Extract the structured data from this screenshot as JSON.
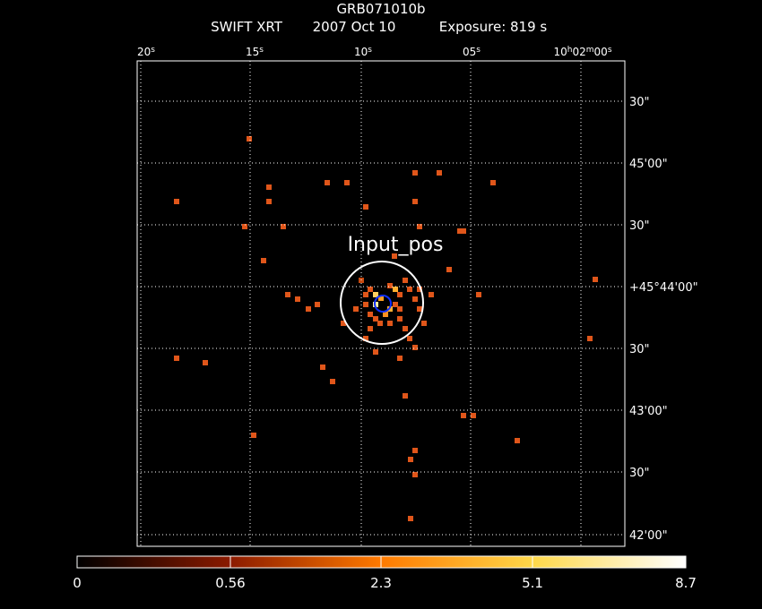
{
  "header": {
    "title": "GRB071010b",
    "subtitle": [
      "SWIFT XRT",
      "2007 Oct 10",
      "Exposure: 819 s"
    ]
  },
  "ra_labels": [
    [
      {
        "t": "20"
      },
      {
        "t": "s",
        "sup": true
      }
    ],
    [
      {
        "t": "15"
      },
      {
        "t": "s",
        "sup": true
      }
    ],
    [
      {
        "t": "10"
      },
      {
        "t": "s",
        "sup": true
      }
    ],
    [
      {
        "t": "05"
      },
      {
        "t": "s",
        "sup": true
      }
    ],
    [
      {
        "t": "10"
      },
      {
        "t": "h",
        "sup": true
      },
      {
        "t": "02"
      },
      {
        "t": "m",
        "sup": true
      },
      {
        "t": "00"
      },
      {
        "t": "s",
        "sup": true
      }
    ]
  ],
  "dec_labels": [
    "30\"",
    "45'00\"",
    "30\"",
    "+45°44'00\"",
    "30\"",
    "43'00\"",
    "30\"",
    "42'00\""
  ],
  "annotation": "Input_pos",
  "colorbar_labels": [
    "0",
    "0.56",
    "2.3",
    "5.1",
    "8.7"
  ]
}
